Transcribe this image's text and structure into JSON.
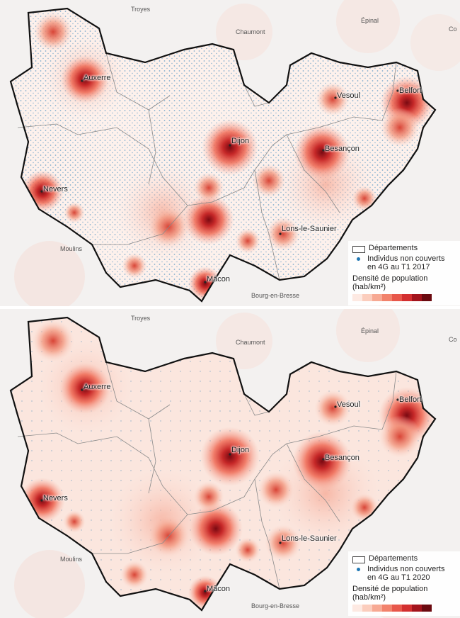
{
  "panels": [
    {
      "id": "top",
      "legend": {
        "departments": "Départements",
        "uncovered_line1": "Individus non couverts",
        "uncovered_line2": "en 4G au T1 2017",
        "density_title_line1": "Densité de population",
        "density_title_line2": "(hab/km²)"
      }
    },
    {
      "id": "bottom",
      "legend": {
        "departments": "Départements",
        "uncovered_line1": "Individus non couverts",
        "uncovered_line2": "en 4G au T1 2020",
        "density_title_line1": "Densité de population",
        "density_title_line2": "(hab/km²)"
      }
    }
  ],
  "cities": {
    "auxerre": "Auxerre",
    "vesoul": "Vesoul",
    "belfort": "Belfort",
    "dijon": "Dijon",
    "besancon": "Besançon",
    "nevers": "Nevers",
    "lons": "Lons-le-Saunier",
    "macon": "Mâcon"
  },
  "outside_towns": {
    "troyes": "Troyes",
    "chaumont": "Chaumont",
    "epinal": "Épinal",
    "co": "Co",
    "moulins": "Moulins",
    "bourg": "Bourg-en-Bresse"
  },
  "colors": {
    "uncovered_dots": "#1f77b4",
    "density_ramp": [
      "#fde9e2",
      "#fbcdbd",
      "#f7a993",
      "#f2826b",
      "#e8574a",
      "#d32f2f",
      "#a3141c",
      "#6b0a10"
    ]
  }
}
